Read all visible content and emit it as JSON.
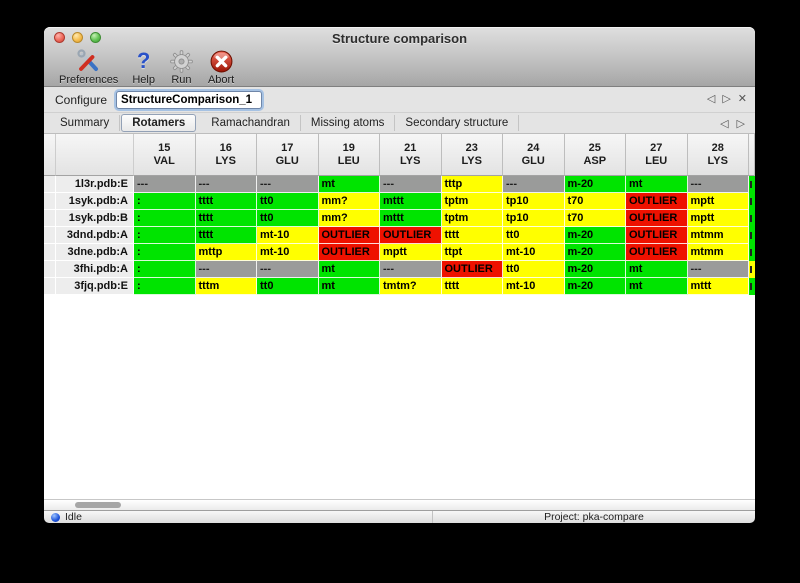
{
  "window": {
    "title": "Structure comparison"
  },
  "toolbar": {
    "items": [
      {
        "label": "Preferences",
        "icon": "tools-icon"
      },
      {
        "label": "Help",
        "icon": "help-icon"
      },
      {
        "label": "Run",
        "icon": "gear-icon"
      },
      {
        "label": "Abort",
        "icon": "abort-icon"
      }
    ]
  },
  "configure": {
    "label": "Configure",
    "value": "StructureComparison_1"
  },
  "glyphs": {
    "left_arrow": "◁",
    "right_arrow": "▷",
    "close": "✕"
  },
  "tabs": {
    "items": [
      "Summary",
      "Rotamers",
      "Ramachandran",
      "Missing atoms",
      "Secondary structure"
    ],
    "selected": "Rotamers"
  },
  "colors": {
    "green": "#00e400",
    "yellow": "#ffff00",
    "red": "#ee1100",
    "gray": "#9a9b9a"
  },
  "table": {
    "columns": [
      {
        "num": "15",
        "res": "VAL"
      },
      {
        "num": "16",
        "res": "LYS"
      },
      {
        "num": "17",
        "res": "GLU"
      },
      {
        "num": "19",
        "res": "LEU"
      },
      {
        "num": "21",
        "res": "LYS"
      },
      {
        "num": "23",
        "res": "LYS"
      },
      {
        "num": "24",
        "res": "GLU"
      },
      {
        "num": "25",
        "res": "ASP"
      },
      {
        "num": "27",
        "res": "LEU"
      },
      {
        "num": "28",
        "res": "LYS"
      }
    ],
    "rows": [
      {
        "label": "1l3r.pdb:E",
        "overflow_color": "green",
        "cells": [
          {
            "text": "---",
            "color": "gray"
          },
          {
            "text": "---",
            "color": "gray"
          },
          {
            "text": "---",
            "color": "gray"
          },
          {
            "text": "mt",
            "color": "green"
          },
          {
            "text": "---",
            "color": "gray"
          },
          {
            "text": "tttp",
            "color": "yellow"
          },
          {
            "text": "---",
            "color": "gray"
          },
          {
            "text": "m-20",
            "color": "green"
          },
          {
            "text": "mt",
            "color": "green"
          },
          {
            "text": "---",
            "color": "gray"
          }
        ]
      },
      {
        "label": "1syk.pdb:A",
        "overflow_color": "green",
        "cells": [
          {
            "text": ":",
            "color": "green"
          },
          {
            "text": "tttt",
            "color": "green"
          },
          {
            "text": "tt0",
            "color": "green"
          },
          {
            "text": "mm?",
            "color": "yellow"
          },
          {
            "text": "mttt",
            "color": "green"
          },
          {
            "text": "tptm",
            "color": "yellow"
          },
          {
            "text": "tp10",
            "color": "yellow"
          },
          {
            "text": "t70",
            "color": "yellow"
          },
          {
            "text": "OUTLIER",
            "color": "red"
          },
          {
            "text": "mptt",
            "color": "yellow"
          }
        ]
      },
      {
        "label": "1syk.pdb:B",
        "overflow_color": "green",
        "cells": [
          {
            "text": ":",
            "color": "green"
          },
          {
            "text": "tttt",
            "color": "green"
          },
          {
            "text": "tt0",
            "color": "green"
          },
          {
            "text": "mm?",
            "color": "yellow"
          },
          {
            "text": "mttt",
            "color": "green"
          },
          {
            "text": "tptm",
            "color": "yellow"
          },
          {
            "text": "tp10",
            "color": "yellow"
          },
          {
            "text": "t70",
            "color": "yellow"
          },
          {
            "text": "OUTLIER",
            "color": "red"
          },
          {
            "text": "mptt",
            "color": "yellow"
          }
        ]
      },
      {
        "label": "3dnd.pdb:A",
        "overflow_color": "green",
        "cells": [
          {
            "text": ":",
            "color": "green"
          },
          {
            "text": "tttt",
            "color": "green"
          },
          {
            "text": "mt-10",
            "color": "yellow"
          },
          {
            "text": "OUTLIER",
            "color": "red"
          },
          {
            "text": "OUTLIER",
            "color": "red"
          },
          {
            "text": "tttt",
            "color": "yellow"
          },
          {
            "text": "tt0",
            "color": "yellow"
          },
          {
            "text": "m-20",
            "color": "green"
          },
          {
            "text": "OUTLIER",
            "color": "red"
          },
          {
            "text": "mtmm",
            "color": "yellow"
          }
        ]
      },
      {
        "label": "3dne.pdb:A",
        "overflow_color": "green",
        "cells": [
          {
            "text": ":",
            "color": "green"
          },
          {
            "text": "mttp",
            "color": "yellow"
          },
          {
            "text": "mt-10",
            "color": "yellow"
          },
          {
            "text": "OUTLIER",
            "color": "red"
          },
          {
            "text": "mptt",
            "color": "yellow"
          },
          {
            "text": "ttpt",
            "color": "yellow"
          },
          {
            "text": "mt-10",
            "color": "yellow"
          },
          {
            "text": "m-20",
            "color": "green"
          },
          {
            "text": "OUTLIER",
            "color": "red"
          },
          {
            "text": "mtmm",
            "color": "yellow"
          }
        ]
      },
      {
        "label": "3fhi.pdb:A",
        "overflow_color": "yellow",
        "cells": [
          {
            "text": ":",
            "color": "green"
          },
          {
            "text": "---",
            "color": "gray"
          },
          {
            "text": "---",
            "color": "gray"
          },
          {
            "text": "mt",
            "color": "green"
          },
          {
            "text": "---",
            "color": "gray"
          },
          {
            "text": "OUTLIER",
            "color": "red"
          },
          {
            "text": "tt0",
            "color": "yellow"
          },
          {
            "text": "m-20",
            "color": "green"
          },
          {
            "text": "mt",
            "color": "green"
          },
          {
            "text": "---",
            "color": "gray"
          }
        ]
      },
      {
        "label": "3fjq.pdb:E",
        "overflow_color": "green",
        "cells": [
          {
            "text": ":",
            "color": "green"
          },
          {
            "text": "tttm",
            "color": "yellow"
          },
          {
            "text": "tt0",
            "color": "green"
          },
          {
            "text": "mt",
            "color": "green"
          },
          {
            "text": "tmtm?",
            "color": "yellow"
          },
          {
            "text": "tttt",
            "color": "yellow"
          },
          {
            "text": "mt-10",
            "color": "yellow"
          },
          {
            "text": "m-20",
            "color": "green"
          },
          {
            "text": "mt",
            "color": "green"
          },
          {
            "text": "mttt",
            "color": "yellow"
          }
        ]
      }
    ]
  },
  "status": {
    "left": "Idle",
    "right": "Project: pka-compare"
  }
}
